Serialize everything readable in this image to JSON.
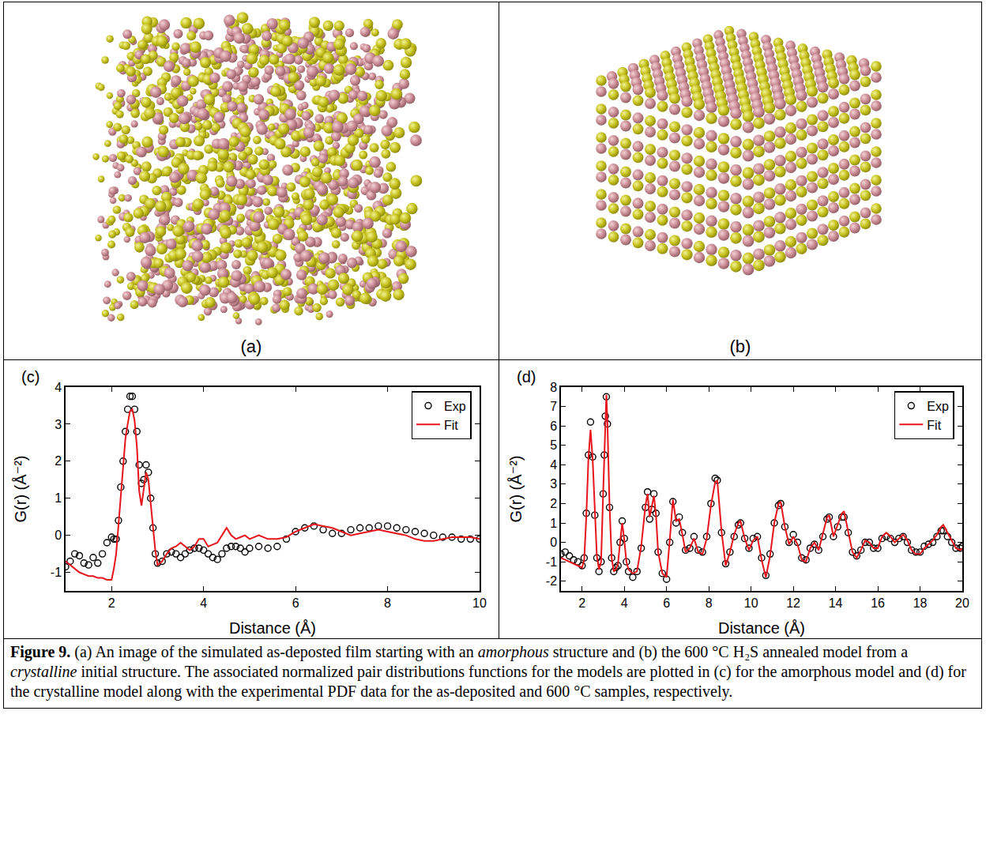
{
  "panels": [
    {
      "label": "(a)"
    },
    {
      "label": "(b)"
    }
  ],
  "chart_data": [
    {
      "type": "line",
      "panel_label": "(c)",
      "x_label": "Distance (Å)",
      "y_label": "G(r) (Å⁻²)",
      "xlim": [
        1,
        10
      ],
      "ylim": [
        -1.5,
        4
      ],
      "xticks": [
        2,
        4,
        6,
        8,
        10
      ],
      "yticks": [
        -1,
        0,
        1,
        2,
        3,
        4
      ],
      "grid": false,
      "legend": "top-right",
      "x": [
        1.0,
        1.1,
        1.2,
        1.3,
        1.4,
        1.5,
        1.6,
        1.7,
        1.8,
        1.9,
        2.0,
        2.05,
        2.1,
        2.15,
        2.2,
        2.25,
        2.3,
        2.35,
        2.4,
        2.45,
        2.5,
        2.55,
        2.6,
        2.65,
        2.7,
        2.75,
        2.8,
        2.85,
        2.9,
        2.95,
        3.0,
        3.1,
        3.2,
        3.3,
        3.4,
        3.5,
        3.6,
        3.7,
        3.8,
        3.9,
        4.0,
        4.1,
        4.2,
        4.3,
        4.4,
        4.5,
        4.6,
        4.7,
        4.8,
        4.9,
        5.0,
        5.2,
        5.4,
        5.6,
        5.8,
        6.0,
        6.2,
        6.4,
        6.6,
        6.8,
        7.0,
        7.2,
        7.4,
        7.6,
        7.8,
        8.0,
        8.2,
        8.4,
        8.6,
        8.8,
        9.0,
        9.2,
        9.4,
        9.6,
        9.8,
        10.0
      ],
      "series": [
        {
          "name": "Exp",
          "type": "scatter",
          "marker": "open circle",
          "color": "#000000",
          "values": [
            -0.85,
            -0.7,
            -0.5,
            -0.55,
            -0.75,
            -0.8,
            -0.6,
            -0.75,
            -0.5,
            -0.2,
            -0.05,
            -0.1,
            -0.1,
            0.4,
            1.3,
            2.0,
            2.8,
            3.4,
            3.75,
            3.75,
            3.4,
            2.8,
            1.9,
            1.4,
            1.5,
            1.9,
            1.7,
            1.0,
            0.2,
            -0.5,
            -0.75,
            -0.7,
            -0.5,
            -0.45,
            -0.5,
            -0.6,
            -0.5,
            -0.4,
            -0.35,
            -0.35,
            -0.4,
            -0.5,
            -0.6,
            -0.65,
            -0.5,
            -0.35,
            -0.3,
            -0.3,
            -0.35,
            -0.45,
            -0.35,
            -0.3,
            -0.35,
            -0.3,
            -0.1,
            0.1,
            0.2,
            0.25,
            0.15,
            0.05,
            0.05,
            0.15,
            0.2,
            0.2,
            0.25,
            0.25,
            0.2,
            0.15,
            0.1,
            0.05,
            0.0,
            -0.05,
            -0.05,
            -0.1,
            -0.1,
            -0.1
          ]
        },
        {
          "name": "Fit",
          "type": "line",
          "line_style": "solid",
          "color": "#e8141c",
          "values": [
            -0.7,
            -0.8,
            -0.9,
            -1.0,
            -1.05,
            -1.1,
            -1.1,
            -1.15,
            -1.15,
            -1.2,
            -1.2,
            -0.9,
            -0.5,
            0.3,
            1.2,
            1.9,
            2.6,
            3.0,
            3.35,
            3.4,
            3.1,
            2.4,
            1.2,
            0.8,
            1.2,
            1.7,
            1.5,
            0.9,
            0.3,
            -0.4,
            -0.8,
            -0.7,
            -0.5,
            -0.35,
            -0.3,
            -0.2,
            -0.3,
            -0.4,
            -0.3,
            -0.1,
            -0.1,
            -0.3,
            -0.25,
            -0.2,
            0.0,
            0.2,
            0.0,
            -0.1,
            -0.05,
            0.0,
            -0.1,
            0.0,
            -0.1,
            -0.1,
            -0.05,
            0.1,
            0.2,
            0.3,
            0.25,
            0.2,
            0.1,
            0.0,
            0.05,
            0.1,
            0.15,
            0.1,
            0.05,
            0.0,
            -0.1,
            -0.15,
            -0.15,
            -0.1,
            -0.05,
            -0.05,
            -0.05,
            -0.1
          ]
        }
      ]
    },
    {
      "type": "line",
      "panel_label": "(d)",
      "x_label": "Distance (Å)",
      "y_label": "G(r) (Å⁻²)",
      "xlim": [
        1,
        20
      ],
      "ylim": [
        -2.5,
        8
      ],
      "xticks": [
        2,
        4,
        6,
        8,
        10,
        12,
        14,
        16,
        18,
        20
      ],
      "yticks": [
        -2,
        -1,
        0,
        1,
        2,
        3,
        4,
        5,
        6,
        7,
        8
      ],
      "grid": false,
      "legend": "top-right",
      "x": [
        1.0,
        1.2,
        1.4,
        1.6,
        1.8,
        2.0,
        2.1,
        2.2,
        2.3,
        2.4,
        2.5,
        2.6,
        2.7,
        2.8,
        2.9,
        3.0,
        3.05,
        3.1,
        3.15,
        3.2,
        3.3,
        3.4,
        3.5,
        3.6,
        3.7,
        3.8,
        3.9,
        4.0,
        4.1,
        4.2,
        4.4,
        4.6,
        4.8,
        5.0,
        5.1,
        5.2,
        5.3,
        5.4,
        5.5,
        5.6,
        5.8,
        6.0,
        6.15,
        6.3,
        6.45,
        6.6,
        6.75,
        6.9,
        7.1,
        7.3,
        7.5,
        7.7,
        7.9,
        8.1,
        8.3,
        8.4,
        8.6,
        8.8,
        9.0,
        9.2,
        9.4,
        9.5,
        9.7,
        9.9,
        10.1,
        10.3,
        10.5,
        10.7,
        10.9,
        11.1,
        11.3,
        11.4,
        11.6,
        11.8,
        12.0,
        12.2,
        12.4,
        12.6,
        12.8,
        13.0,
        13.2,
        13.4,
        13.6,
        13.7,
        13.9,
        14.1,
        14.3,
        14.4,
        14.6,
        14.8,
        15.0,
        15.2,
        15.4,
        15.6,
        15.8,
        16.0,
        16.2,
        16.4,
        16.6,
        16.8,
        17.0,
        17.2,
        17.4,
        17.6,
        17.8,
        18.0,
        18.2,
        18.4,
        18.6,
        18.8,
        19.0,
        19.1,
        19.3,
        19.5,
        19.7,
        19.9,
        20.0
      ],
      "series": [
        {
          "name": "Exp",
          "type": "scatter",
          "marker": "open circle",
          "color": "#000000",
          "values": [
            -0.6,
            -0.5,
            -0.7,
            -0.9,
            -1.0,
            -1.2,
            -0.8,
            1.5,
            4.5,
            6.2,
            4.4,
            1.4,
            -0.8,
            -1.5,
            -1.0,
            2.5,
            4.5,
            6.5,
            7.5,
            6.1,
            1.8,
            -0.8,
            -1.5,
            -1.3,
            -1.2,
            0.0,
            1.1,
            0.2,
            -1.0,
            -1.5,
            -1.8,
            -1.5,
            -0.3,
            1.8,
            2.6,
            1.2,
            1.7,
            2.5,
            1.5,
            -0.5,
            -1.6,
            -1.9,
            0.0,
            2.1,
            1.0,
            1.3,
            0.5,
            -0.4,
            -0.3,
            0.3,
            -0.4,
            -0.5,
            0.3,
            2.0,
            3.3,
            3.2,
            0.5,
            -1.1,
            -0.5,
            0.3,
            0.9,
            1.0,
            0.2,
            -0.3,
            0.2,
            0.3,
            -0.8,
            -1.7,
            -0.6,
            1.0,
            1.9,
            2.0,
            0.8,
            0.0,
            0.4,
            0.0,
            -0.8,
            -0.9,
            -0.3,
            -0.1,
            -0.4,
            0.3,
            1.2,
            1.3,
            0.3,
            0.8,
            1.3,
            1.3,
            0.5,
            -0.5,
            -0.7,
            -0.4,
            0.0,
            0.0,
            -0.3,
            -0.3,
            0.2,
            0.3,
            0.2,
            0.0,
            0.2,
            0.3,
            0.0,
            -0.4,
            -0.5,
            -0.5,
            -0.2,
            -0.1,
            0.0,
            0.3,
            0.6,
            0.6,
            0.3,
            0.0,
            -0.3,
            -0.3,
            -0.2
          ]
        },
        {
          "name": "Fit",
          "type": "line",
          "line_style": "solid",
          "color": "#e8141c",
          "values": [
            -0.8,
            -0.9,
            -1.0,
            -1.1,
            -1.2,
            -1.3,
            -0.9,
            1.3,
            4.3,
            5.8,
            4.3,
            1.4,
            -0.7,
            -1.4,
            -1.0,
            2.6,
            4.6,
            6.6,
            7.6,
            6.2,
            1.9,
            -0.8,
            -1.5,
            -1.4,
            -1.1,
            0.0,
            1.0,
            0.1,
            -1.0,
            -1.4,
            -1.6,
            -1.5,
            -0.2,
            1.9,
            2.5,
            1.3,
            1.8,
            2.4,
            1.4,
            -0.5,
            -1.6,
            -1.8,
            0.1,
            2.2,
            1.1,
            1.2,
            0.4,
            -0.5,
            -0.3,
            0.2,
            -0.5,
            -0.6,
            0.2,
            1.9,
            3.1,
            3.2,
            0.6,
            -1.2,
            -0.5,
            0.4,
            1.0,
            1.1,
            0.2,
            -0.4,
            0.1,
            0.3,
            -0.9,
            -1.8,
            -0.7,
            1.0,
            2.0,
            2.1,
            0.8,
            -0.1,
            0.3,
            -0.1,
            -0.9,
            -1.0,
            -0.3,
            0.0,
            -0.4,
            0.4,
            1.3,
            1.4,
            0.3,
            0.9,
            1.5,
            1.6,
            0.6,
            -0.5,
            -0.8,
            -0.4,
            0.1,
            0.0,
            -0.3,
            -0.3,
            0.3,
            0.5,
            0.3,
            0.0,
            0.2,
            0.4,
            0.1,
            -0.4,
            -0.6,
            -0.6,
            -0.3,
            -0.1,
            0.1,
            0.4,
            0.8,
            0.9,
            0.5,
            0.1,
            -0.3,
            -0.4,
            -0.3
          ]
        }
      ]
    }
  ],
  "caption": [
    {
      "text": "Figure 9.",
      "bold": true
    },
    {
      "text": " (a) An image of the simulated as-deposted film starting with an "
    },
    {
      "text": "amorphous",
      "italic": true
    },
    {
      "text": " structure and (b) the 600 °C H₂S annealed model from a "
    },
    {
      "text": "crystalline",
      "italic": true
    },
    {
      "text": " initial structure.  The associated normalized pair distributions functions for the models are plotted in (c) for the amorphous model and (d) for the crystalline model along with the experimental PDF data for the as-deposited and 600 °C samples, respectively."
    }
  ]
}
